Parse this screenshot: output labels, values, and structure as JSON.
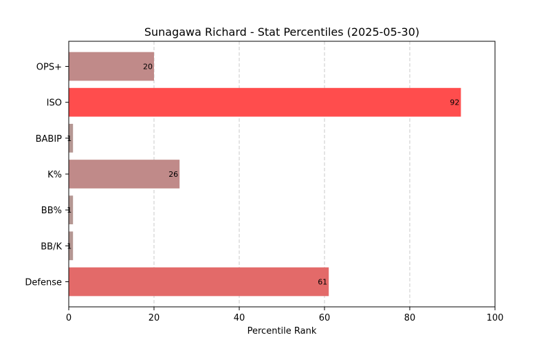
{
  "chart_data": {
    "type": "bar",
    "orientation": "horizontal",
    "title": "Sunagawa Richard - Stat Percentiles (2025-05-30)",
    "xlabel": "Percentile Rank",
    "ylabel": "",
    "xlim": [
      0,
      100
    ],
    "x_ticks": [
      0,
      20,
      40,
      60,
      80,
      100
    ],
    "grid": "vertical dashed",
    "categories": [
      "OPS+",
      "ISO",
      "BABIP",
      "K%",
      "BB%",
      "BB/K",
      "Defense"
    ],
    "values": [
      20,
      92,
      1,
      26,
      1,
      1,
      61
    ],
    "colors": [
      "#c08a89",
      "#ff4d4d",
      "#b59793",
      "#c08a89",
      "#b59793",
      "#b59793",
      "#e36a69"
    ]
  }
}
